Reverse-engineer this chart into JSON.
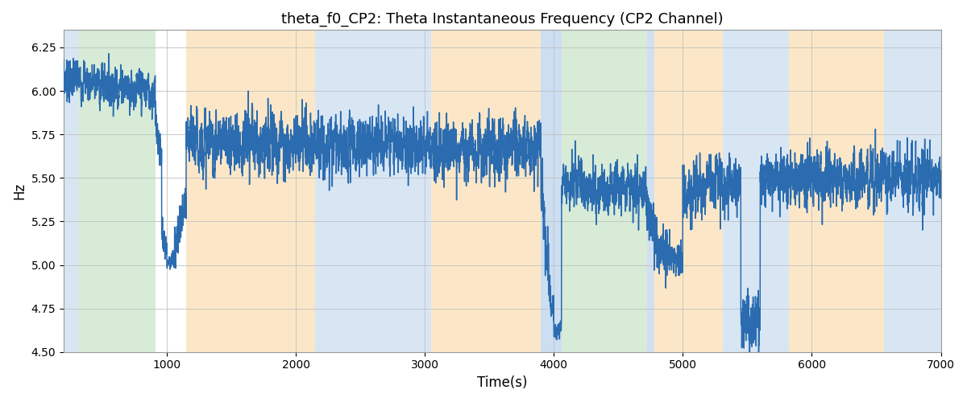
{
  "title": "theta_f0_CP2: Theta Instantaneous Frequency (CP2 Channel)",
  "xlabel": "Time(s)",
  "ylabel": "Hz",
  "xlim": [
    200,
    7000
  ],
  "ylim": [
    4.5,
    6.35
  ],
  "yticks": [
    4.5,
    4.75,
    5.0,
    5.25,
    5.5,
    5.75,
    6.0,
    6.25
  ],
  "xticks": [
    1000,
    2000,
    3000,
    4000,
    5000,
    6000,
    7000
  ],
  "line_color": "#2b6cb0",
  "line_width": 1.1,
  "background_color": "#ffffff",
  "grid_color": "#c0c0c0",
  "bands": [
    {
      "xmin": 200,
      "xmax": 310,
      "color": "#aac8e8",
      "alpha": 0.45
    },
    {
      "xmin": 310,
      "xmax": 910,
      "color": "#a8d4a8",
      "alpha": 0.45
    },
    {
      "xmin": 910,
      "xmax": 1150,
      "color": "#ffffff",
      "alpha": 0.0
    },
    {
      "xmin": 1150,
      "xmax": 2150,
      "color": "#f8d090",
      "alpha": 0.5
    },
    {
      "xmin": 2150,
      "xmax": 3050,
      "color": "#aac8e8",
      "alpha": 0.45
    },
    {
      "xmin": 3050,
      "xmax": 3900,
      "color": "#f8d090",
      "alpha": 0.5
    },
    {
      "xmin": 3900,
      "xmax": 4060,
      "color": "#aac8e8",
      "alpha": 0.6
    },
    {
      "xmin": 4060,
      "xmax": 4720,
      "color": "#a8d4a8",
      "alpha": 0.45
    },
    {
      "xmin": 4720,
      "xmax": 4780,
      "color": "#aac8e8",
      "alpha": 0.55
    },
    {
      "xmin": 4780,
      "xmax": 5310,
      "color": "#f8d090",
      "alpha": 0.5
    },
    {
      "xmin": 5310,
      "xmax": 5820,
      "color": "#aac8e8",
      "alpha": 0.45
    },
    {
      "xmin": 5820,
      "xmax": 6560,
      "color": "#f8d090",
      "alpha": 0.5
    },
    {
      "xmin": 6560,
      "xmax": 7000,
      "color": "#aac8e8",
      "alpha": 0.45
    }
  ],
  "seed": 7,
  "segments": [
    {
      "t_start": 200,
      "t_end": 910,
      "mean": 6.08,
      "std": 0.06,
      "trend": -0.00012,
      "ar": 0.55,
      "noise_scale": 1.0
    },
    {
      "t_start": 910,
      "t_end": 960,
      "mean": 5.85,
      "std": 0.045,
      "trend": -0.005,
      "ar": 0.3,
      "noise_scale": 1.0
    },
    {
      "t_start": 960,
      "t_end": 1000,
      "mean": 5.2,
      "std": 0.055,
      "trend": -0.003,
      "ar": 0.2,
      "noise_scale": 1.0
    },
    {
      "t_start": 1000,
      "t_end": 1060,
      "mean": 5.02,
      "std": 0.025,
      "trend": 0.0002,
      "ar": 0.2,
      "noise_scale": 1.0
    },
    {
      "t_start": 1060,
      "t_end": 1150,
      "mean": 5.1,
      "std": 0.06,
      "trend": 0.003,
      "ar": 0.3,
      "noise_scale": 1.0
    },
    {
      "t_start": 1150,
      "t_end": 2150,
      "mean": 5.7,
      "std": 0.085,
      "trend": 1e-05,
      "ar": 0.5,
      "noise_scale": 1.0
    },
    {
      "t_start": 2150,
      "t_end": 3050,
      "mean": 5.68,
      "std": 0.08,
      "trend": 8e-06,
      "ar": 0.5,
      "noise_scale": 1.0
    },
    {
      "t_start": 3050,
      "t_end": 3900,
      "mean": 5.67,
      "std": 0.085,
      "trend": 5e-06,
      "ar": 0.5,
      "noise_scale": 1.0
    },
    {
      "t_start": 3900,
      "t_end": 3960,
      "mean": 5.45,
      "std": 0.1,
      "trend": -0.008,
      "ar": 0.25,
      "noise_scale": 1.0
    },
    {
      "t_start": 3960,
      "t_end": 4000,
      "mean": 4.85,
      "std": 0.06,
      "trend": -0.003,
      "ar": 0.2,
      "noise_scale": 1.0
    },
    {
      "t_start": 4000,
      "t_end": 4060,
      "mean": 4.62,
      "std": 0.025,
      "trend": 0.0003,
      "ar": 0.2,
      "noise_scale": 1.0
    },
    {
      "t_start": 4060,
      "t_end": 4720,
      "mean": 5.47,
      "std": 0.068,
      "trend": -6e-05,
      "ar": 0.5,
      "noise_scale": 1.0
    },
    {
      "t_start": 4720,
      "t_end": 4800,
      "mean": 5.3,
      "std": 0.09,
      "trend": -0.001,
      "ar": 0.3,
      "noise_scale": 1.0
    },
    {
      "t_start": 4800,
      "t_end": 4900,
      "mean": 5.1,
      "std": 0.07,
      "trend": -0.0005,
      "ar": 0.25,
      "noise_scale": 1.0
    },
    {
      "t_start": 4900,
      "t_end": 5000,
      "mean": 5.03,
      "std": 0.04,
      "trend": 0.0002,
      "ar": 0.2,
      "noise_scale": 1.0
    },
    {
      "t_start": 5000,
      "t_end": 5310,
      "mean": 5.4,
      "std": 0.08,
      "trend": 0.0003,
      "ar": 0.45,
      "noise_scale": 1.0
    },
    {
      "t_start": 5310,
      "t_end": 5450,
      "mean": 5.45,
      "std": 0.08,
      "trend": 0.0002,
      "ar": 0.45,
      "noise_scale": 1.0
    },
    {
      "t_start": 5450,
      "t_end": 5600,
      "mean": 4.7,
      "std": 0.085,
      "trend": -0.0003,
      "ar": 0.35,
      "noise_scale": 1.0
    },
    {
      "t_start": 5600,
      "t_end": 5820,
      "mean": 5.48,
      "std": 0.078,
      "trend": 0.0001,
      "ar": 0.45,
      "noise_scale": 1.0
    },
    {
      "t_start": 5820,
      "t_end": 6560,
      "mean": 5.5,
      "std": 0.08,
      "trend": 8e-06,
      "ar": 0.48,
      "noise_scale": 1.0
    },
    {
      "t_start": 6560,
      "t_end": 7001,
      "mean": 5.5,
      "std": 0.082,
      "trend": 5e-06,
      "ar": 0.48,
      "noise_scale": 1.0
    }
  ]
}
